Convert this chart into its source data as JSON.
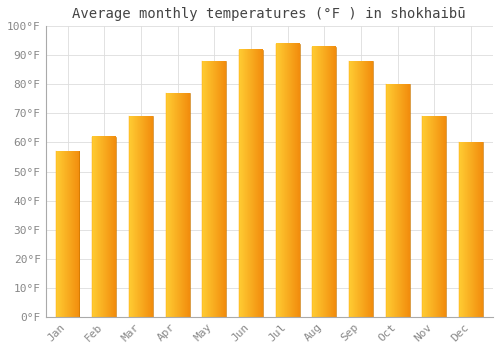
{
  "title": "Average monthly temperatures (°F ) in shokhaibū",
  "months": [
    "Jan",
    "Feb",
    "Mar",
    "Apr",
    "May",
    "Jun",
    "Jul",
    "Aug",
    "Sep",
    "Oct",
    "Nov",
    "Dec"
  ],
  "values": [
    57,
    62,
    69,
    77,
    88,
    92,
    94,
    93,
    88,
    80,
    69,
    60
  ],
  "bar_color_left": "#FFC107",
  "bar_color_right": "#E65100",
  "background_color": "#FFFFFF",
  "grid_color": "#DDDDDD",
  "ylim": [
    0,
    100
  ],
  "yticks": [
    0,
    10,
    20,
    30,
    40,
    50,
    60,
    70,
    80,
    90,
    100
  ],
  "ytick_labels": [
    "0°F",
    "10°F",
    "20°F",
    "30°F",
    "40°F",
    "50°F",
    "60°F",
    "70°F",
    "80°F",
    "90°F",
    "100°F"
  ],
  "title_fontsize": 10,
  "tick_fontsize": 8,
  "font_family": "monospace",
  "bar_width": 0.65
}
